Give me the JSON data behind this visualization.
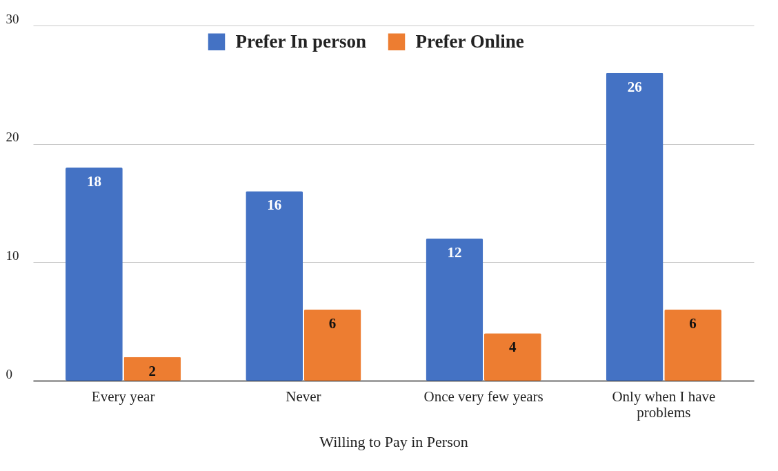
{
  "chart_data": {
    "type": "bar",
    "xlabel": "Willing to Pay in Person",
    "categories": [
      "Every year",
      "Never",
      "Once very few years",
      "Only when I have problems"
    ],
    "series": [
      {
        "name": "Prefer In person",
        "color": "#4472c4",
        "values": [
          18,
          16,
          12,
          26
        ]
      },
      {
        "name": "Prefer Online",
        "color": "#ed7d31",
        "values": [
          2,
          6,
          4,
          6
        ]
      }
    ],
    "ylim": [
      0,
      30
    ],
    "yticks": [
      0,
      10,
      20,
      30
    ],
    "grid": "y",
    "legend": "top",
    "data_labels": true
  }
}
